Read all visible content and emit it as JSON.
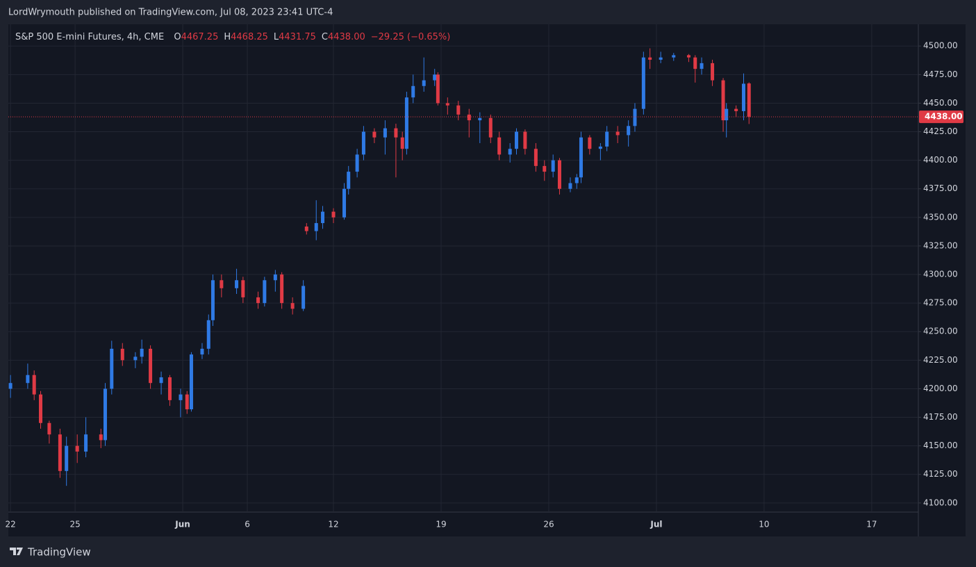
{
  "published": "LordWrymouth published on TradingView.com, Jul 08, 2023 23:41 UTC-4",
  "footer": "TradingView",
  "chart_data": {
    "type": "candlestick",
    "title": "S&P 500 E-mini Futures, 4h, CME",
    "ohlc": [
      {
        "key": "O",
        "value": "4467.25"
      },
      {
        "key": "H",
        "value": "4468.25"
      },
      {
        "key": "L",
        "value": "4431.75"
      },
      {
        "key": "C",
        "value": "4438.00"
      }
    ],
    "change": "−29.25 (−0.65%)",
    "colors": {
      "up": "#2f7ae5",
      "down": "#e03a45"
    },
    "grid": true,
    "x": [
      0.0,
      0.8,
      1.1,
      1.4,
      1.8,
      2.3,
      2.6,
      3.1,
      3.5,
      4.2,
      4.4,
      4.7,
      5.2,
      5.8,
      6.1,
      6.5,
      7.0,
      7.4,
      7.9,
      8.2,
      8.4,
      8.9,
      9.2,
      9.4,
      9.8,
      10.5,
      10.8,
      11.5,
      11.8,
      12.3,
      12.6,
      13.1,
      13.6,
      13.75,
      14.2,
      14.5,
      15.0,
      15.5,
      15.7,
      16.1,
      16.4,
      16.9,
      17.4,
      17.9,
      18.2,
      18.4,
      18.7,
      19.2,
      19.7,
      19.85,
      20.3,
      20.8,
      21.3,
      21.8,
      22.3,
      22.7,
      23.2,
      23.5,
      23.9,
      24.4,
      24.8,
      25.2,
      25.5,
      26.0,
      26.3,
      26.5,
      26.9,
      27.4,
      27.7,
      28.2,
      28.7,
      29.0,
      29.4,
      29.7,
      30.2,
      30.8,
      31.5,
      31.8,
      32.1,
      32.6,
      33.1,
      33.25,
      33.7,
      34.05,
      34.3
    ],
    "open": [
      4200,
      4205,
      4212,
      4195,
      4170,
      4160,
      4128,
      4150,
      4145,
      4160,
      4155,
      4200,
      4235,
      4225,
      4228,
      4235,
      4205,
      4210,
      4190,
      4195,
      4182,
      4230,
      4235,
      4260,
      4295,
      4288,
      4295,
      4280,
      4275,
      4295,
      4300,
      4275,
      4270,
      4342,
      4338,
      4345,
      4355,
      4350,
      4375,
      4390,
      4405,
      4425,
      4420,
      4428,
      4420,
      4410,
      4455,
      4465,
      4470,
      4475,
      4450,
      4448,
      4440,
      4435,
      4437,
      4420,
      4405,
      4410,
      4425,
      4410,
      4395,
      4390,
      4400,
      4375,
      4380,
      4385,
      4420,
      4410,
      4412,
      4425,
      4422,
      4430,
      4445,
      4490,
      4488,
      4490,
      4492,
      4490,
      4480,
      4485,
      4470,
      4435,
      4445,
      4443,
      4467.25
    ],
    "high": [
      4212,
      4222,
      4216,
      4198,
      4172,
      4165,
      4158,
      4160,
      4175,
      4165,
      4205,
      4242,
      4240,
      4232,
      4243,
      4238,
      4215,
      4212,
      4200,
      4198,
      4232,
      4240,
      4265,
      4300,
      4300,
      4305,
      4298,
      4285,
      4298,
      4304,
      4302,
      4280,
      4295,
      4345,
      4365,
      4360,
      4358,
      4380,
      4395,
      4410,
      4430,
      4428,
      4435,
      4432,
      4425,
      4460,
      4475,
      4490,
      4480,
      4477,
      4455,
      4452,
      4445,
      4442,
      4440,
      4425,
      4415,
      4428,
      4427,
      4415,
      4400,
      4405,
      4402,
      4385,
      4388,
      4425,
      4422,
      4415,
      4430,
      4430,
      4435,
      4450,
      4495,
      4498,
      4495,
      4494,
      4493,
      4492,
      4490,
      4488,
      4472,
      4450,
      4448,
      4476,
      4468.25
    ],
    "low": [
      4192,
      4200,
      4190,
      4165,
      4152,
      4122,
      4115,
      4135,
      4140,
      4148,
      4150,
      4195,
      4220,
      4218,
      4222,
      4200,
      4195,
      4185,
      4175,
      4178,
      4180,
      4226,
      4230,
      4255,
      4280,
      4283,
      4275,
      4270,
      4272,
      4285,
      4270,
      4265,
      4268,
      4335,
      4330,
      4340,
      4345,
      4348,
      4370,
      4385,
      4400,
      4415,
      4405,
      4385,
      4400,
      4405,
      4450,
      4460,
      4465,
      4448,
      4440,
      4435,
      4420,
      4415,
      4415,
      4400,
      4398,
      4405,
      4405,
      4390,
      4382,
      4385,
      4370,
      4372,
      4375,
      4380,
      4405,
      4400,
      4408,
      4415,
      4412,
      4425,
      4440,
      4480,
      4485,
      4487,
      4486,
      4468,
      4475,
      4465,
      4425,
      4420,
      4438,
      4435,
      4431.75
    ],
    "close": [
      4205,
      4212,
      4195,
      4170,
      4160,
      4128,
      4150,
      4145,
      4160,
      4155,
      4200,
      4235,
      4225,
      4228,
      4235,
      4205,
      4210,
      4190,
      4195,
      4182,
      4230,
      4235,
      4260,
      4295,
      4288,
      4295,
      4280,
      4275,
      4295,
      4300,
      4275,
      4270,
      4290,
      4338,
      4345,
      4355,
      4350,
      4375,
      4390,
      4405,
      4425,
      4420,
      4428,
      4420,
      4410,
      4455,
      4465,
      4470,
      4475,
      4450,
      4448,
      4440,
      4435,
      4437,
      4420,
      4405,
      4410,
      4425,
      4410,
      4395,
      4390,
      4400,
      4375,
      4380,
      4385,
      4420,
      4410,
      4412,
      4425,
      4422,
      4430,
      4445,
      4490,
      4488,
      4490,
      4492,
      4490,
      4480,
      4485,
      4470,
      4435,
      4445,
      4443,
      4467,
      4438
    ],
    "last_price": {
      "value": 4438,
      "label": "4438.00"
    },
    "xlim": [
      -0.1,
      42.1
    ],
    "xticks": [
      {
        "value": 0,
        "label": "22"
      },
      {
        "value": 3,
        "label": "25"
      },
      {
        "value": 8,
        "label": "Jun"
      },
      {
        "value": 11,
        "label": "6"
      },
      {
        "value": 15,
        "label": "12"
      },
      {
        "value": 20,
        "label": "19"
      },
      {
        "value": 25,
        "label": "26"
      },
      {
        "value": 30,
        "label": "Jul"
      },
      {
        "value": 35,
        "label": "10"
      },
      {
        "value": 40,
        "label": "17"
      }
    ],
    "ylim": [
      4092,
      4519
    ],
    "yticks": [
      {
        "value": 4100,
        "label": "4100.00"
      },
      {
        "value": 4125,
        "label": "4125.00"
      },
      {
        "value": 4150,
        "label": "4150.00"
      },
      {
        "value": 4175,
        "label": "4175.00"
      },
      {
        "value": 4200,
        "label": "4200.00"
      },
      {
        "value": 4225,
        "label": "4225.00"
      },
      {
        "value": 4250,
        "label": "4250.00"
      },
      {
        "value": 4275,
        "label": "4275.00"
      },
      {
        "value": 4300,
        "label": "4300.00"
      },
      {
        "value": 4325,
        "label": "4325.00"
      },
      {
        "value": 4350,
        "label": "4350.00"
      },
      {
        "value": 4375,
        "label": "4375.00"
      },
      {
        "value": 4400,
        "label": "4400.00"
      },
      {
        "value": 4425,
        "label": "4425.00"
      },
      {
        "value": 4450,
        "label": "4450.00"
      },
      {
        "value": 4475,
        "label": "4475.00"
      },
      {
        "value": 4500,
        "label": "4500.00"
      }
    ]
  }
}
